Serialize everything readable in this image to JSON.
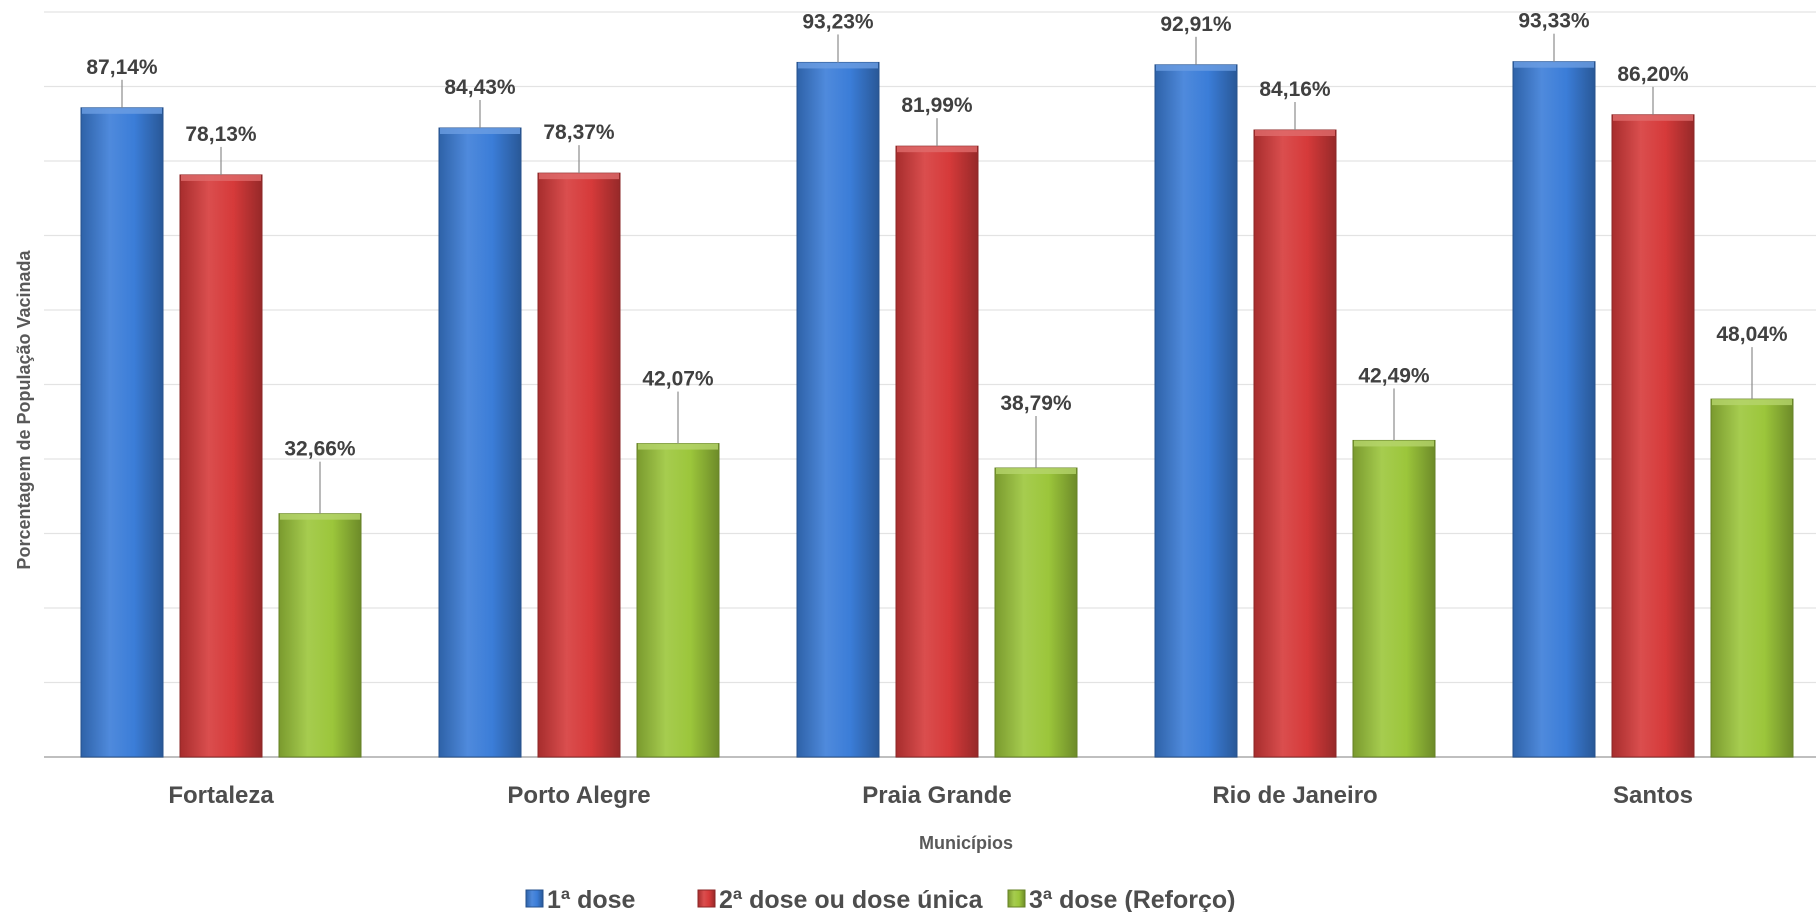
{
  "chart_data": {
    "type": "bar",
    "xlabel": "Municípios",
    "ylabel": "Porcentagem de População Vacinada",
    "ylim": [
      0,
      100
    ],
    "grid": true,
    "legend_position": "bottom",
    "categories": [
      "Fortaleza",
      "Porto Alegre",
      "Praia Grande",
      "Rio de Janeiro",
      "Santos"
    ],
    "series": [
      {
        "name": "1ª dose",
        "color": "#3b7dd8",
        "values": [
          87.14,
          84.43,
          93.23,
          92.91,
          93.33
        ],
        "labels": [
          "87,14%",
          "84,43%",
          "93,23%",
          "92,91%",
          "93,33%"
        ]
      },
      {
        "name": "2ª dose ou dose única",
        "color": "#d63a3a",
        "values": [
          78.13,
          78.37,
          81.99,
          84.16,
          86.2
        ],
        "labels": [
          "78,13%",
          "78,37%",
          "81,99%",
          "84,16%",
          "86,20%"
        ]
      },
      {
        "name": "3ª dose (Reforço)",
        "color": "#9cc63b",
        "values": [
          32.66,
          42.07,
          38.79,
          42.49,
          48.04
        ],
        "labels": [
          "32,66%",
          "42,07%",
          "38,79%",
          "42,49%",
          "48,04%"
        ]
      }
    ]
  }
}
